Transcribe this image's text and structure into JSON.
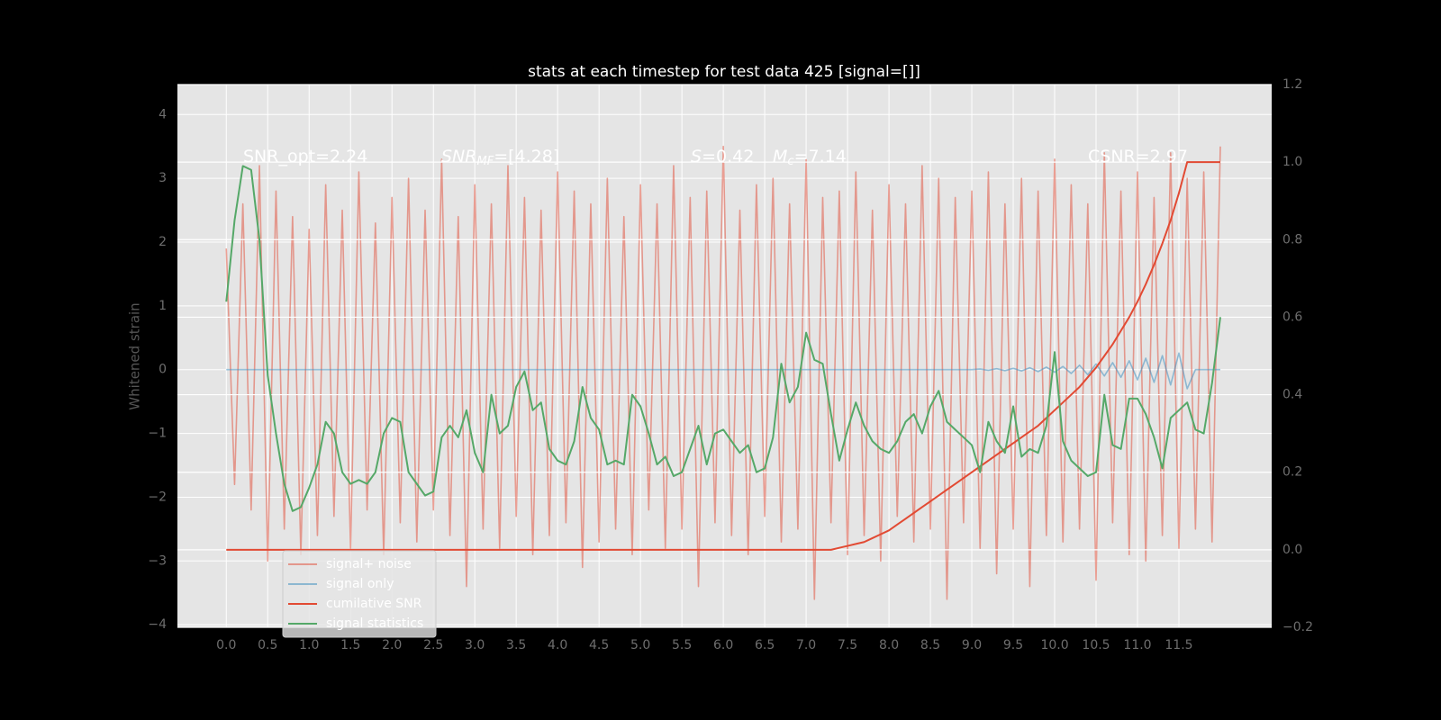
{
  "chart_data": {
    "type": "line",
    "title": "stats at each timestep for test data 425 [signal=[]]",
    "ylabel": "Whitened strain",
    "x": [
      0,
      0.1,
      0.2,
      0.3,
      0.4,
      0.5,
      0.6,
      0.7,
      0.8,
      0.9,
      1,
      1.1,
      1.2,
      1.3,
      1.4,
      1.5,
      1.6,
      1.7,
      1.8,
      1.9,
      2,
      2.1,
      2.2,
      2.3,
      2.4,
      2.5,
      2.6,
      2.7,
      2.8,
      2.9,
      3,
      3.1,
      3.2,
      3.3,
      3.4,
      3.5,
      3.6,
      3.7,
      3.8,
      3.9,
      4,
      4.1,
      4.2,
      4.3,
      4.4,
      4.5,
      4.6,
      4.7,
      4.8,
      4.9,
      5,
      5.1,
      5.2,
      5.3,
      5.4,
      5.5,
      5.6,
      5.7,
      5.8,
      5.9,
      6,
      6.1,
      6.2,
      6.3,
      6.4,
      6.5,
      6.6,
      6.7,
      6.8,
      6.9,
      7,
      7.1,
      7.2,
      7.3,
      7.4,
      7.5,
      7.6,
      7.7,
      7.8,
      7.9,
      8,
      8.1,
      8.2,
      8.3,
      8.4,
      8.5,
      8.6,
      8.7,
      8.8,
      8.9,
      9,
      9.1,
      9.2,
      9.3,
      9.4,
      9.5,
      9.6,
      9.7,
      9.8,
      9.9,
      10,
      10.1,
      10.2,
      10.3,
      10.4,
      10.5,
      10.6,
      10.7,
      10.8,
      10.9,
      11,
      11.1,
      11.2,
      11.3,
      11.4,
      11.5,
      11.6,
      11.7,
      11.8,
      11.9,
      12
    ],
    "series": [
      {
        "name": "signal+ noise",
        "color": "#e24a33",
        "opacity": 0.5,
        "axis": "y",
        "values": [
          1.9,
          -1.8,
          2.6,
          -2.2,
          3.2,
          -3.0,
          2.8,
          -2.5,
          2.4,
          -2.9,
          2.2,
          -2.6,
          2.9,
          -2.3,
          2.5,
          -2.8,
          3.1,
          -2.2,
          2.3,
          -2.9,
          2.7,
          -2.4,
          3.0,
          -2.7,
          2.5,
          -2.2,
          3.3,
          -2.6,
          2.4,
          -3.4,
          2.9,
          -2.5,
          2.6,
          -2.8,
          3.2,
          -2.3,
          2.7,
          -2.9,
          2.5,
          -2.6,
          3.1,
          -2.4,
          2.8,
          -3.1,
          2.6,
          -2.7,
          3.0,
          -2.5,
          2.4,
          -2.9,
          2.9,
          -2.2,
          2.6,
          -2.8,
          3.2,
          -2.5,
          2.7,
          -3.4,
          2.8,
          -2.4,
          3.5,
          -2.6,
          2.5,
          -2.9,
          2.9,
          -2.3,
          3.0,
          -2.7,
          2.6,
          -2.5,
          3.3,
          -3.6,
          2.7,
          -2.4,
          2.8,
          -2.9,
          3.1,
          -2.6,
          2.5,
          -3.0,
          2.9,
          -2.3,
          2.6,
          -2.7,
          3.2,
          -2.5,
          3.0,
          -3.6,
          2.7,
          -2.4,
          2.8,
          -2.8,
          3.1,
          -3.2,
          2.6,
          -2.5,
          3.0,
          -3.4,
          2.8,
          -2.6,
          3.3,
          -2.7,
          2.9,
          -2.5,
          2.6,
          -3.3,
          3.4,
          -2.4,
          2.8,
          -2.9,
          3.1,
          -3.0,
          2.7,
          -2.6,
          3.4,
          -2.8,
          3.0,
          -2.5,
          3.1,
          -2.7,
          3.5
        ]
      },
      {
        "name": "signal only",
        "color": "#348abd",
        "opacity": 0.5,
        "axis": "y",
        "values": [
          0,
          0,
          0,
          0,
          0,
          0,
          0,
          0,
          0,
          0,
          0,
          0,
          0,
          0,
          0,
          0,
          0,
          0,
          0,
          0,
          0,
          0,
          0,
          0,
          0,
          0,
          0,
          0,
          0,
          0,
          0,
          0,
          0,
          0,
          0,
          0,
          0,
          0,
          0,
          0,
          0,
          0,
          0,
          0,
          0,
          0,
          0,
          0,
          0,
          0,
          0,
          0,
          0,
          0,
          0,
          0,
          0,
          0,
          0,
          0,
          0,
          0,
          0,
          0,
          0,
          0,
          0,
          0,
          0,
          0,
          0,
          0,
          0,
          0,
          0,
          0,
          0,
          0,
          0,
          0,
          0,
          0,
          0,
          0,
          0,
          0,
          0,
          0,
          0,
          0,
          0,
          0.01,
          -0.01,
          0.015,
          -0.015,
          0.02,
          -0.02,
          0.03,
          -0.03,
          0.04,
          -0.04,
          0.05,
          -0.06,
          0.07,
          -0.08,
          0.09,
          -0.1,
          0.11,
          -0.12,
          0.14,
          -0.16,
          0.18,
          -0.2,
          0.22,
          -0.24,
          0.26,
          -0.3,
          0,
          0,
          0,
          0
        ]
      },
      {
        "name": "cumilative SNR",
        "color": "#e24a33",
        "opacity": 1,
        "axis": "y2",
        "values": [
          0,
          0,
          0,
          0,
          0,
          0,
          0,
          0,
          0,
          0,
          0,
          0,
          0,
          0,
          0,
          0,
          0,
          0,
          0,
          0,
          0,
          0,
          0,
          0,
          0,
          0,
          0,
          0,
          0,
          0,
          0,
          0,
          0,
          0,
          0,
          0,
          0,
          0,
          0,
          0,
          0,
          0,
          0,
          0,
          0,
          0,
          0,
          0,
          0,
          0,
          0,
          0,
          0,
          0,
          0,
          0,
          0,
          0,
          0,
          0,
          0,
          0,
          0,
          0,
          0,
          0,
          0,
          0,
          0,
          0,
          0,
          0,
          0,
          0,
          0.005,
          0.01,
          0.015,
          0.02,
          0.03,
          0.04,
          0.05,
          0.065,
          0.08,
          0.095,
          0.11,
          0.125,
          0.14,
          0.155,
          0.17,
          0.185,
          0.2,
          0.215,
          0.23,
          0.245,
          0.26,
          0.275,
          0.29,
          0.305,
          0.32,
          0.34,
          0.36,
          0.38,
          0.4,
          0.42,
          0.445,
          0.47,
          0.5,
          0.53,
          0.565,
          0.6,
          0.64,
          0.685,
          0.735,
          0.79,
          0.85,
          0.92,
          1.0,
          1.0,
          1.0,
          1.0,
          1.0
        ]
      },
      {
        "name": "signal statistics",
        "color": "#55a868",
        "opacity": 1,
        "axis": "y2",
        "values": [
          0.64,
          0.85,
          0.99,
          0.98,
          0.8,
          0.45,
          0.3,
          0.17,
          0.1,
          0.11,
          0.16,
          0.22,
          0.33,
          0.3,
          0.2,
          0.17,
          0.18,
          0.17,
          0.2,
          0.3,
          0.34,
          0.33,
          0.2,
          0.17,
          0.14,
          0.15,
          0.29,
          0.32,
          0.29,
          0.36,
          0.25,
          0.2,
          0.4,
          0.3,
          0.32,
          0.42,
          0.46,
          0.36,
          0.38,
          0.26,
          0.23,
          0.22,
          0.28,
          0.42,
          0.34,
          0.31,
          0.22,
          0.23,
          0.22,
          0.4,
          0.37,
          0.3,
          0.22,
          0.24,
          0.19,
          0.2,
          0.26,
          0.32,
          0.22,
          0.3,
          0.31,
          0.28,
          0.25,
          0.27,
          0.2,
          0.21,
          0.29,
          0.48,
          0.38,
          0.42,
          0.56,
          0.49,
          0.48,
          0.35,
          0.23,
          0.31,
          0.38,
          0.32,
          0.28,
          0.26,
          0.25,
          0.28,
          0.33,
          0.35,
          0.3,
          0.37,
          0.41,
          0.33,
          0.31,
          0.29,
          0.27,
          0.2,
          0.33,
          0.28,
          0.25,
          0.37,
          0.24,
          0.26,
          0.25,
          0.32,
          0.51,
          0.28,
          0.23,
          0.21,
          0.19,
          0.2,
          0.4,
          0.27,
          0.26,
          0.39,
          0.39,
          0.35,
          0.29,
          0.21,
          0.34,
          0.36,
          0.38,
          0.31,
          0.3,
          0.43,
          0.6
        ]
      }
    ],
    "xlim": [
      -0.59,
      12.62
    ],
    "ylim": [
      -4.04,
      4.47
    ],
    "y2lim": [
      -0.2,
      1.2
    ],
    "xticks": [
      {
        "value": 0,
        "label": "0.0"
      },
      0.5,
      {
        "value": 1,
        "label": "1.0"
      },
      1.5,
      {
        "value": 2,
        "label": "2.0"
      },
      2.5,
      {
        "value": 3,
        "label": "3.0"
      },
      3.5,
      {
        "value": 4,
        "label": "4.0"
      },
      4.5,
      {
        "value": 5,
        "label": "5.0"
      },
      5.5,
      {
        "value": 6,
        "label": "6.0"
      },
      6.5,
      {
        "value": 7,
        "label": "7.0"
      },
      7.5,
      {
        "value": 8,
        "label": "8.0"
      },
      8.5,
      {
        "value": 9,
        "label": "9.0"
      },
      9.5,
      {
        "value": 10,
        "label": "10.0"
      },
      10.5,
      {
        "value": 11,
        "label": "11.0"
      },
      11.5
    ],
    "yticks": [
      {
        "value": -4,
        "label": "−4"
      },
      {
        "value": -3,
        "label": "−3"
      },
      {
        "value": -2,
        "label": "−2"
      },
      {
        "value": -1,
        "label": "−1"
      },
      0,
      1,
      2,
      3,
      4
    ],
    "y2ticks": [
      {
        "value": -0.2,
        "label": "−0.2"
      },
      {
        "value": 0,
        "label": "0.0"
      },
      0.2,
      0.4,
      0.6,
      0.8,
      {
        "value": 1,
        "label": "1.0"
      },
      1.2
    ],
    "grid": true,
    "legend": "lower left",
    "annotations": [
      [
        {
          "text": "SNR_opt=2.24"
        }
      ],
      [
        {
          "text": "SNR",
          "italic": true
        },
        {
          "text": "MF",
          "sub": true,
          "italic": true
        },
        {
          "text": "=[4.28]"
        }
      ],
      [
        {
          "text": "S",
          "italic": true
        },
        {
          "text": "=0.42"
        }
      ],
      [
        {
          "text": "M",
          "italic": true
        },
        {
          "text": "c",
          "sub": true,
          "italic": true
        },
        {
          "text": "=7.14"
        }
      ],
      [
        {
          "text": "CSNR=2.97"
        }
      ]
    ]
  }
}
